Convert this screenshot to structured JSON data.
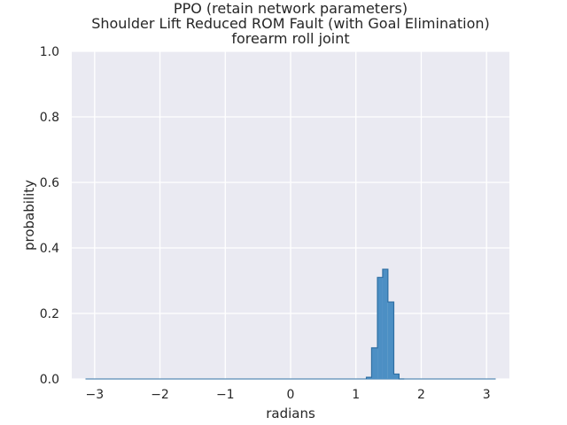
{
  "chart_data": {
    "type": "bar",
    "title_lines": [
      "PPO (retain network parameters)",
      "Shoulder Lift Reduced ROM Fault (with Goal Elimination)",
      "forearm roll joint"
    ],
    "xlabel": "radians",
    "ylabel": "probability",
    "xlim": [
      -3.35,
      3.35
    ],
    "ylim": [
      0,
      1.0
    ],
    "xticks": [
      -3,
      -2,
      -1,
      0,
      1,
      2,
      3
    ],
    "xtick_labels": [
      "−3",
      "−2",
      "−1",
      "0",
      "1",
      "2",
      "3"
    ],
    "yticks": [
      0,
      0.2,
      0.4,
      0.6,
      0.8,
      1.0
    ],
    "ytick_labels": [
      "0.0",
      "0.2",
      "0.4",
      "0.6",
      "0.8",
      "1.0"
    ],
    "grid": true,
    "background_color": "#eaeaf2",
    "bar_color": "#4c8fc4",
    "edge_color": "#2f6fa3",
    "baseline": [
      -3.14,
      3.14
    ],
    "bin_edges": [
      1.16,
      1.24,
      1.33,
      1.41,
      1.49,
      1.58,
      1.66,
      1.74
    ],
    "values": [
      0.005,
      0.095,
      0.31,
      0.335,
      0.235,
      0.015,
      0.0
    ]
  }
}
